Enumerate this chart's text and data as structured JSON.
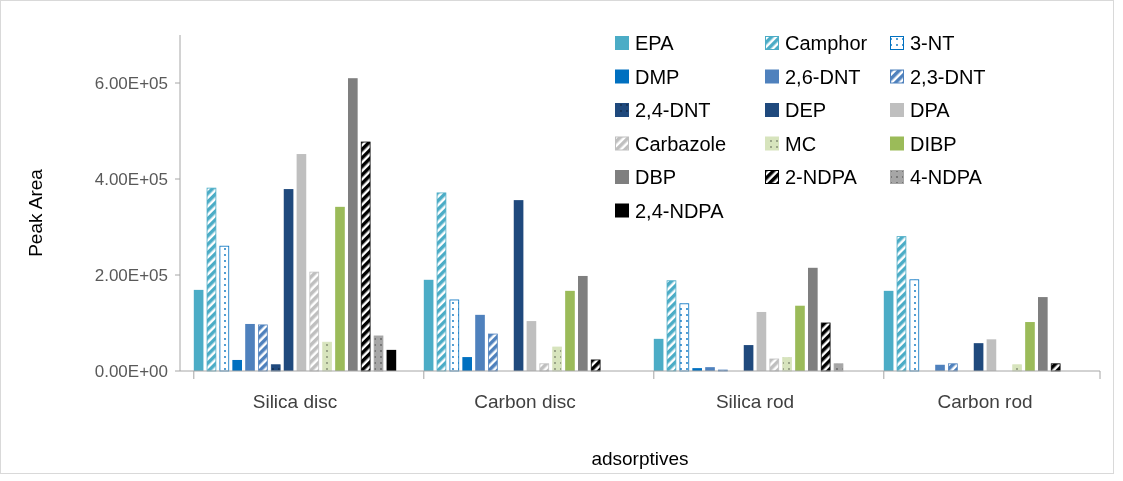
{
  "chart_data": {
    "type": "bar",
    "categories": [
      "Silica disc",
      "Carbon disc",
      "Silica rod",
      "Carbon rod"
    ],
    "ylabel": "Peak Area",
    "xlabel": "adsorptives",
    "ylim": [
      0,
      700000
    ],
    "yticks": [
      {
        "value": 0,
        "label": "0.00E+00"
      },
      {
        "value": 200000,
        "label": "2.00E+05"
      },
      {
        "value": 400000,
        "label": "4.00E+05"
      },
      {
        "value": 600000,
        "label": "6.00E+05"
      }
    ],
    "legend": "top right",
    "grid": false,
    "series": [
      {
        "name": "EPA",
        "color": "#4bacc6",
        "values": [
          169000,
          190000,
          67000,
          167000
        ]
      },
      {
        "name": "Camphor",
        "color": "#4bacc6",
        "values": [
          381000,
          371000,
          188000,
          280000
        ]
      },
      {
        "name": "3-NT",
        "color": "#0070c0",
        "values": [
          260000,
          148000,
          140000,
          190000
        ]
      },
      {
        "name": "DMP",
        "color": "#0070c0",
        "values": [
          23000,
          29000,
          6000,
          0
        ]
      },
      {
        "name": "2,6-DNT",
        "color": "#4f81bd",
        "values": [
          98000,
          117000,
          8000,
          13000
        ]
      },
      {
        "name": "2,3-DNT",
        "color": "#4f81bd",
        "values": [
          96000,
          77000,
          2000,
          15000
        ]
      },
      {
        "name": "2,4-DNT",
        "color": "#1f497d",
        "values": [
          13000,
          0,
          0,
          0
        ]
      },
      {
        "name": "DEP",
        "color": "#1f497d",
        "values": [
          379000,
          356000,
          54000,
          58000
        ]
      },
      {
        "name": "DPA",
        "color": "#bfbfbf",
        "values": [
          452000,
          104000,
          123000,
          66000
        ]
      },
      {
        "name": "Carbazole",
        "color": "#bfbfbf",
        "values": [
          206000,
          15000,
          25000,
          0
        ]
      },
      {
        "name": "MC",
        "color": "#d7e4bd",
        "values": [
          60000,
          50000,
          28000,
          13000
        ]
      },
      {
        "name": "DIBP",
        "color": "#9bbb59",
        "values": [
          342000,
          167000,
          136000,
          102000
        ]
      },
      {
        "name": "DBP",
        "color": "#7f7f7f",
        "values": [
          610000,
          198000,
          215000,
          154000
        ]
      },
      {
        "name": "2-NDPA",
        "color": "#000000",
        "values": [
          477000,
          23000,
          100000,
          15000
        ]
      },
      {
        "name": "4-NDPA",
        "color": "#a6a6a6",
        "values": [
          73000,
          0,
          15000,
          0
        ]
      },
      {
        "name": "2,4-NDPA",
        "color": "#000000",
        "values": [
          44000,
          0,
          0,
          0
        ]
      }
    ]
  }
}
